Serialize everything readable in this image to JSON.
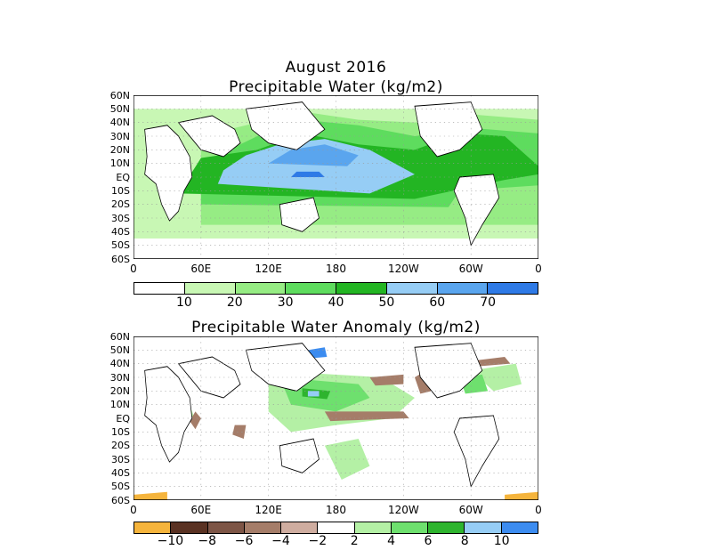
{
  "panel1": {
    "title_line1": "August 2016",
    "title_line2": "Precipitable Water (kg/m2)",
    "colorbar": {
      "colors": [
        "#ffffff",
        "#c8f7b4",
        "#96ec84",
        "#5edc5e",
        "#23b523",
        "#96cdf5",
        "#5aa5ee",
        "#2e7ae6"
      ],
      "labels": [
        "10",
        "20",
        "30",
        "40",
        "50",
        "60",
        "70"
      ]
    }
  },
  "panel2": {
    "title": "Precipitable Water Anomaly (kg/m2)",
    "colorbar": {
      "colors": [
        "#f5b43c",
        "#5a3223",
        "#7d5546",
        "#a57d69",
        "#cfada0",
        "#ffffff",
        "#b4f0a5",
        "#6ee06e",
        "#2eb42e",
        "#96cdf5",
        "#3c8cf0"
      ],
      "labels": [
        "−10",
        "−8",
        "−6",
        "−4",
        "−2",
        "2",
        "4",
        "6",
        "8",
        "10"
      ]
    }
  },
  "lat_labels": [
    "60N",
    "50N",
    "40N",
    "30N",
    "20N",
    "10N",
    "EQ",
    "10S",
    "20S",
    "30S",
    "40S",
    "50S",
    "60S"
  ],
  "lon_labels": [
    "0",
    "60E",
    "120E",
    "180",
    "120W",
    "60W",
    "0"
  ]
}
